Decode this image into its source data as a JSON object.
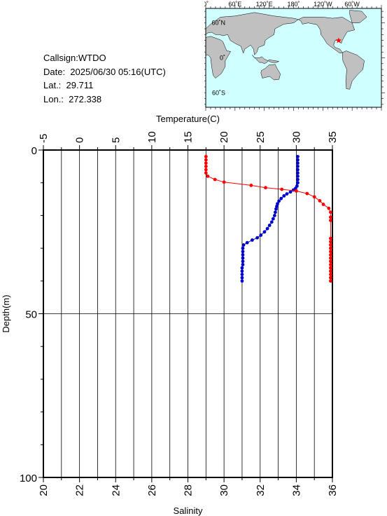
{
  "station": {
    "callsign": "Callsign:WTDO",
    "date": "Date:  2025/06/30 05:16(UTC)",
    "lat": "Lat.:  29.711",
    "lon": "Lon.:  272.338"
  },
  "map": {
    "lon_ticks": [
      "0˚",
      "60˚E",
      "120˚E",
      "180˚",
      "120˚W",
      "60˚W"
    ],
    "lat_ticks": [
      "60˚N",
      "0˚",
      "60˚S"
    ],
    "ocean_color": "#cfffff",
    "land_color": "#c0c0c0",
    "marker_color": "#ff0000",
    "marker_lon": 272.338,
    "marker_lat": 29.711
  },
  "chart_data": {
    "type": "line",
    "title": "",
    "temperature_label": "Temperature(C)",
    "salinity_label": "Salinity",
    "depth_label": "Depth(m)",
    "temperature_axis": {
      "range": [
        -5,
        35
      ],
      "ticks": [
        "-5",
        "0",
        "5",
        "10",
        "15",
        "20",
        "25",
        "30",
        "35"
      ]
    },
    "salinity_axis": {
      "range": [
        20,
        36
      ],
      "ticks": [
        "20",
        "22",
        "24",
        "26",
        "28",
        "30",
        "32",
        "34",
        "36"
      ]
    },
    "depth_axis": {
      "range": [
        0,
        100
      ],
      "ticks": [
        "0",
        "50",
        "100"
      ],
      "inverted": true
    },
    "grid": true,
    "series": [
      {
        "quantity": "temperature",
        "color": "#0000cc",
        "points": [
          [
            30.2,
            2.0
          ],
          [
            30.2,
            3.0
          ],
          [
            30.2,
            4.0
          ],
          [
            30.2,
            5.0
          ],
          [
            30.2,
            6.0
          ],
          [
            30.2,
            7.0
          ],
          [
            30.2,
            8.0
          ],
          [
            30.2,
            9.0
          ],
          [
            30.2,
            10.0
          ],
          [
            30.1,
            11.0
          ],
          [
            29.9,
            11.7
          ],
          [
            29.6,
            12.2
          ],
          [
            29.2,
            12.8
          ],
          [
            28.7,
            13.4
          ],
          [
            28.3,
            14.0
          ],
          [
            27.9,
            14.8
          ],
          [
            27.6,
            15.6
          ],
          [
            27.4,
            16.4
          ],
          [
            27.3,
            17.2
          ],
          [
            27.2,
            18.0
          ],
          [
            27.1,
            19.0
          ],
          [
            27.0,
            20.0
          ],
          [
            26.8,
            21.0
          ],
          [
            26.6,
            22.0
          ],
          [
            26.3,
            23.0
          ],
          [
            26.0,
            24.0
          ],
          [
            25.6,
            25.0
          ],
          [
            25.1,
            26.0
          ],
          [
            24.6,
            26.8
          ],
          [
            23.9,
            27.5
          ],
          [
            23.2,
            28.3
          ],
          [
            22.7,
            29.0
          ],
          [
            22.6,
            30.0
          ],
          [
            22.6,
            31.0
          ],
          [
            22.6,
            32.0
          ],
          [
            22.6,
            33.0
          ],
          [
            22.6,
            34.0
          ],
          [
            22.6,
            35.0
          ],
          [
            22.5,
            36.0
          ],
          [
            22.5,
            37.0
          ],
          [
            22.5,
            38.0
          ],
          [
            22.5,
            39.0
          ],
          [
            22.5,
            40.0
          ]
        ]
      },
      {
        "quantity": "salinity",
        "color": "#ff0000",
        "points": [
          [
            29.0,
            2.0
          ],
          [
            29.0,
            3.0
          ],
          [
            29.0,
            4.0
          ],
          [
            29.0,
            5.0
          ],
          [
            29.0,
            6.0
          ],
          [
            29.0,
            7.0
          ],
          [
            29.1,
            8.0
          ],
          [
            29.5,
            9.0
          ],
          [
            30.0,
            9.8
          ],
          [
            31.5,
            10.8
          ],
          [
            32.3,
            11.5
          ],
          [
            33.2,
            12.0
          ],
          [
            34.0,
            12.5
          ],
          [
            34.6,
            13.3
          ],
          [
            35.0,
            14.3
          ],
          [
            35.3,
            15.5
          ],
          [
            35.5,
            16.6
          ],
          [
            35.8,
            17.8
          ],
          [
            35.9,
            19.0
          ],
          [
            35.9,
            20.5
          ],
          [
            35.9,
            21.5
          ],
          [
            35.9,
            27.0
          ],
          [
            35.9,
            28.0
          ],
          [
            35.9,
            29.0
          ],
          [
            35.9,
            30.0
          ],
          [
            35.9,
            31.0
          ],
          [
            35.9,
            32.0
          ],
          [
            35.9,
            33.0
          ],
          [
            35.9,
            34.0
          ],
          [
            35.9,
            35.0
          ],
          [
            35.9,
            36.0
          ],
          [
            35.9,
            37.0
          ],
          [
            35.9,
            38.0
          ],
          [
            35.9,
            39.0
          ],
          [
            35.9,
            40.0
          ]
        ]
      }
    ]
  }
}
